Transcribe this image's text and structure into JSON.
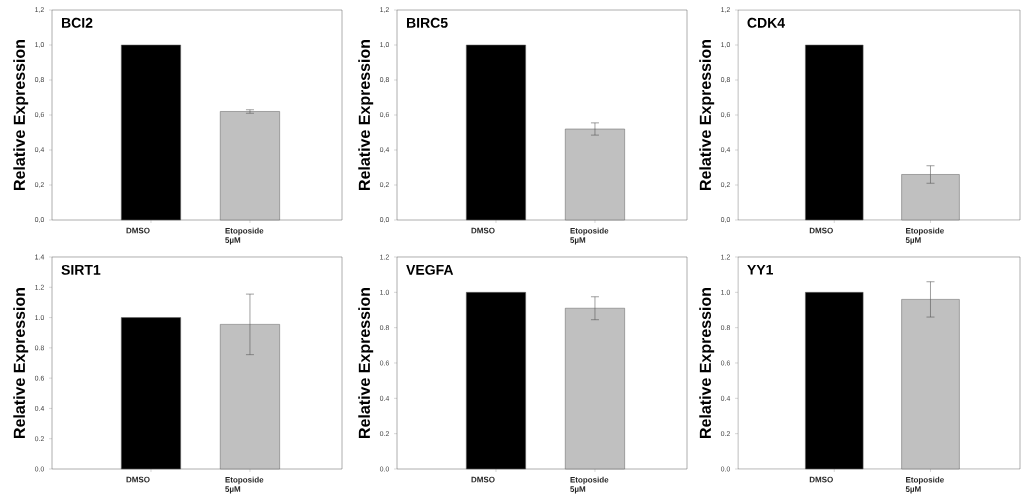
{
  "chart_data": [
    {
      "type": "bar",
      "title": "BCI2",
      "ylabel": "Relative Expression",
      "categories": [
        "DMSO",
        "Etoposide 5µM"
      ],
      "values": [
        1.0,
        0.62
      ],
      "errors": [
        null,
        0.01
      ],
      "colors": [
        "#000000",
        "#c0c0c0"
      ],
      "ylim": [
        0,
        1.2
      ],
      "yticks": [
        {
          "value": 0,
          "label": "0,0"
        },
        {
          "value": 0.2,
          "label": "0,2"
        },
        {
          "value": 0.4,
          "label": "0,4"
        },
        {
          "value": 0.6,
          "label": "0,6"
        },
        {
          "value": 0.8,
          "label": "0,8"
        },
        {
          "value": 1.0,
          "label": "1,0"
        },
        {
          "value": 1.2,
          "label": "1,2"
        }
      ]
    },
    {
      "type": "bar",
      "title": "BIRC5",
      "ylabel": "Relative Expression",
      "categories": [
        "DMSO",
        "Etoposide 5µM"
      ],
      "values": [
        1.0,
        0.52
      ],
      "errors": [
        null,
        0.035
      ],
      "colors": [
        "#000000",
        "#c0c0c0"
      ],
      "ylim": [
        0,
        1.2
      ],
      "yticks": [
        {
          "value": 0,
          "label": "0,0"
        },
        {
          "value": 0.2,
          "label": "0,2"
        },
        {
          "value": 0.4,
          "label": "0,4"
        },
        {
          "value": 0.6,
          "label": "0,6"
        },
        {
          "value": 0.8,
          "label": "0,8"
        },
        {
          "value": 1.0,
          "label": "1,0"
        },
        {
          "value": 1.2,
          "label": "1,2"
        }
      ]
    },
    {
      "type": "bar",
      "title": "CDK4",
      "ylabel": "Relative Expression",
      "categories": [
        "DMSO",
        "Etoposide 5µM"
      ],
      "values": [
        1.0,
        0.26
      ],
      "errors": [
        null,
        0.05
      ],
      "colors": [
        "#000000",
        "#c0c0c0"
      ],
      "ylim": [
        0,
        1.2
      ],
      "yticks": [
        {
          "value": 0,
          "label": "0,0"
        },
        {
          "value": 0.2,
          "label": "0,2"
        },
        {
          "value": 0.4,
          "label": "0,4"
        },
        {
          "value": 0.6,
          "label": "0,6"
        },
        {
          "value": 0.8,
          "label": "0,8"
        },
        {
          "value": 1.0,
          "label": "1,0"
        },
        {
          "value": 1.2,
          "label": "1,2"
        }
      ]
    },
    {
      "type": "bar",
      "title": "SIRT1",
      "ylabel": "Relative Expression",
      "categories": [
        "DMSO",
        "Etoposide 5µM"
      ],
      "values": [
        1.0,
        0.955
      ],
      "errors": [
        null,
        0.2
      ],
      "colors": [
        "#000000",
        "#c0c0c0"
      ],
      "ylim": [
        0,
        1.4
      ],
      "yticks": [
        {
          "value": 0,
          "label": "0.0"
        },
        {
          "value": 0.2,
          "label": "0.2"
        },
        {
          "value": 0.4,
          "label": "0.4"
        },
        {
          "value": 0.6,
          "label": "0.6"
        },
        {
          "value": 0.8,
          "label": "0.8"
        },
        {
          "value": 1.0,
          "label": "1.0"
        },
        {
          "value": 1.2,
          "label": "1.2"
        },
        {
          "value": 1.4,
          "label": "1.4"
        }
      ]
    },
    {
      "type": "bar",
      "title": "VEGFA",
      "ylabel": "Relative Expression",
      "categories": [
        "DMSO",
        "Etoposide 5µM"
      ],
      "values": [
        1.0,
        0.91
      ],
      "errors": [
        null,
        0.065
      ],
      "colors": [
        "#000000",
        "#c0c0c0"
      ],
      "ylim": [
        0,
        1.2
      ],
      "yticks": [
        {
          "value": 0,
          "label": "0.0"
        },
        {
          "value": 0.2,
          "label": "0.2"
        },
        {
          "value": 0.4,
          "label": "0.4"
        },
        {
          "value": 0.6,
          "label": "0.6"
        },
        {
          "value": 0.8,
          "label": "0.8"
        },
        {
          "value": 1.0,
          "label": "1.0"
        },
        {
          "value": 1.2,
          "label": "1.2"
        }
      ]
    },
    {
      "type": "bar",
      "title": "YY1",
      "ylabel": "Relative Expression",
      "categories": [
        "DMSO",
        "Etoposide 5µM"
      ],
      "values": [
        1.0,
        0.96
      ],
      "errors": [
        null,
        0.1
      ],
      "colors": [
        "#000000",
        "#c0c0c0"
      ],
      "ylim": [
        0,
        1.2
      ],
      "yticks": [
        {
          "value": 0,
          "label": "0.0"
        },
        {
          "value": 0.2,
          "label": "0.2"
        },
        {
          "value": 0.4,
          "label": "0.4"
        },
        {
          "value": 0.6,
          "label": "0.6"
        },
        {
          "value": 0.8,
          "label": "0.8"
        },
        {
          "value": 1.0,
          "label": "1.0"
        },
        {
          "value": 1.2,
          "label": "1.2"
        }
      ]
    }
  ]
}
